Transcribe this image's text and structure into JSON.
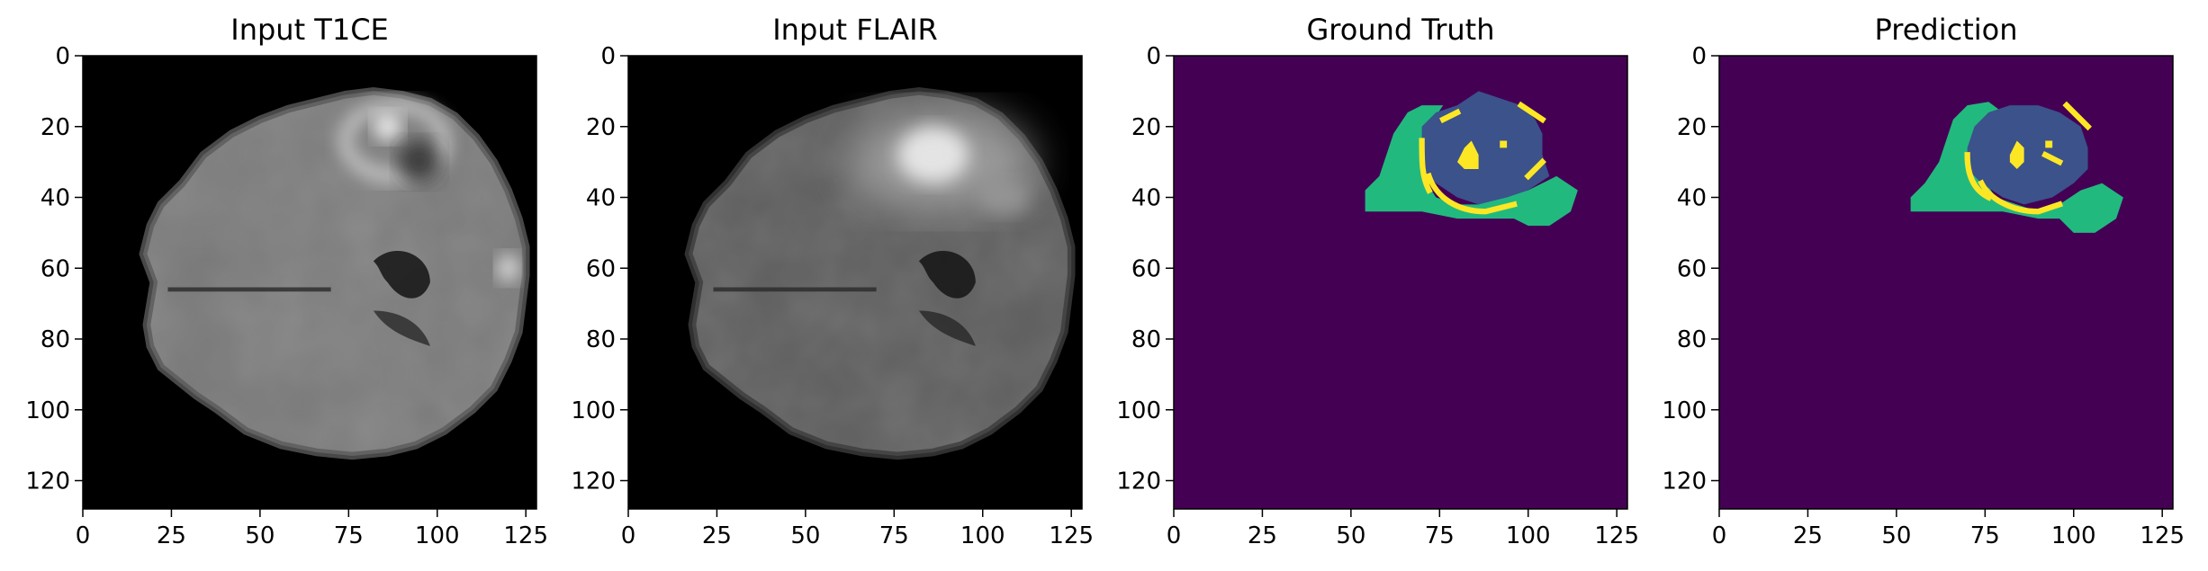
{
  "figure": {
    "panels": [
      {
        "id": "t1ce",
        "title": "Input T1CE",
        "kind": "mri",
        "x_ticks": [
          "0",
          "25",
          "50",
          "75",
          "100",
          "125"
        ],
        "y_ticks": [
          "0",
          "20",
          "40",
          "60",
          "80",
          "100",
          "120"
        ]
      },
      {
        "id": "flair",
        "title": "Input FLAIR",
        "kind": "mri",
        "x_ticks": [
          "0",
          "25",
          "50",
          "75",
          "100",
          "125"
        ],
        "y_ticks": [
          "0",
          "20",
          "40",
          "60",
          "80",
          "100",
          "120"
        ]
      },
      {
        "id": "ground-truth",
        "title": "Ground Truth",
        "kind": "segmentation",
        "x_ticks": [
          "0",
          "25",
          "50",
          "75",
          "100",
          "125"
        ],
        "y_ticks": [
          "0",
          "20",
          "40",
          "60",
          "80",
          "100",
          "120"
        ]
      },
      {
        "id": "prediction",
        "title": "Prediction",
        "kind": "segmentation",
        "x_ticks": [
          "0",
          "25",
          "50",
          "75",
          "100",
          "125"
        ],
        "y_ticks": [
          "0",
          "20",
          "40",
          "60",
          "80",
          "100",
          "120"
        ]
      }
    ],
    "colors": {
      "background_segmentation": "#440154",
      "edema": "#22b97f",
      "tumor_core": "#3b528b",
      "enhancing": "#fde725",
      "mri_background": "#000000"
    },
    "image_extent": [
      0,
      127
    ]
  }
}
